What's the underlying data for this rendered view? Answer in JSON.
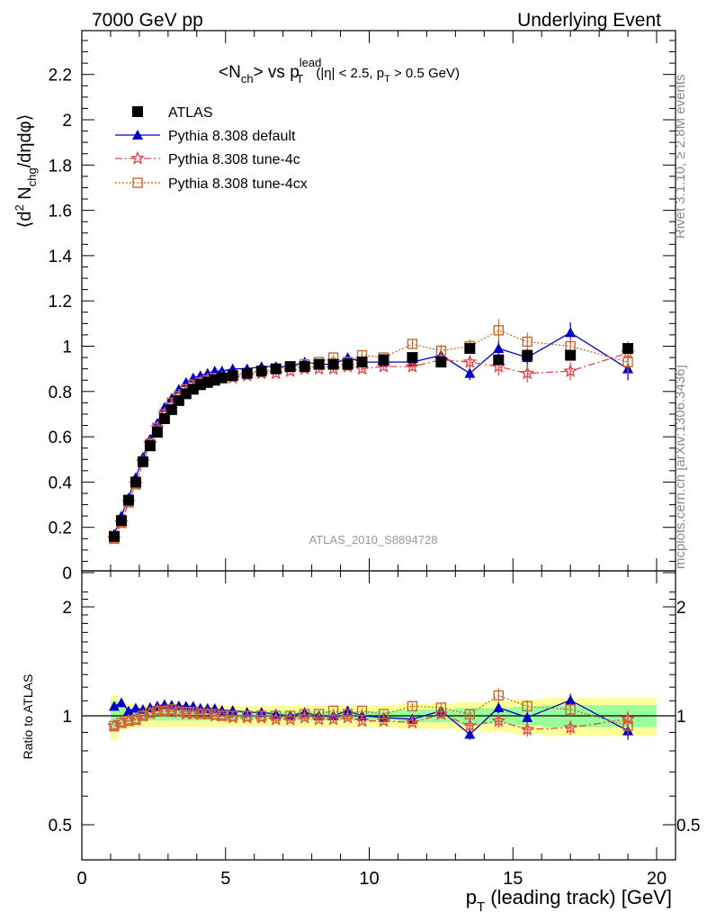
{
  "header": {
    "left": "7000 GeV pp",
    "right": "Underlying Event"
  },
  "side": {
    "rivet": "Rivet 3.1.10, ≥ 2.8M events",
    "mcplots": "mcplots.cern.ch [arXiv:1306.3436]"
  },
  "chart_data": {
    "type": "scatter",
    "title": {
      "main": "<N",
      "sub1": "ch",
      "mid": "> vs p",
      "sup": "lead",
      "sub2": "T",
      "cut": "(|η| < 2.5, p",
      "cutsub": "T",
      "cutend": " > 0.5 GeV)"
    },
    "analysis_label": "ATLAS_2010_S8894728",
    "ylabel": {
      "a": "⟨d",
      "b": "2",
      "c": " N",
      "d": "chg",
      "e": "/dηdφ⟩"
    },
    "ratio_ylabel": "Ratio to ATLAS",
    "xlabel": {
      "a": "p",
      "b": "T",
      "c": " (leading track) [GeV]"
    },
    "xlim": [
      0,
      20
    ],
    "ylim": [
      0,
      2.4
    ],
    "ratio_ylim": [
      0.35,
      2.3
    ],
    "x_ticks": [
      "0",
      "5",
      "10",
      "15",
      "20"
    ],
    "y_ticks": [
      "0",
      "0.2",
      "0.4",
      "0.6",
      "0.8",
      "1",
      "1.2",
      "1.4",
      "1.6",
      "1.8",
      "2",
      "2.2"
    ],
    "ratio_ticks": [
      "0.5",
      "1",
      "2"
    ],
    "legend": {
      "position": "top-left",
      "entries": [
        "ATLAS",
        "Pythia 8.308 default",
        "Pythia 8.308 tune-4c",
        "Pythia 8.308 tune-4cx"
      ]
    },
    "x": [
      1.125,
      1.375,
      1.625,
      1.875,
      2.125,
      2.375,
      2.625,
      2.875,
      3.125,
      3.375,
      3.625,
      3.875,
      4.125,
      4.375,
      4.625,
      4.875,
      5.25,
      5.75,
      6.25,
      6.75,
      7.25,
      7.75,
      8.25,
      8.75,
      9.25,
      9.75,
      10.5,
      11.5,
      12.5,
      13.5,
      14.5,
      15.5,
      17.0,
      19.0
    ],
    "bin_edges": [
      1.0,
      1.25,
      1.5,
      1.75,
      2.0,
      2.25,
      2.5,
      2.75,
      3.0,
      3.25,
      3.5,
      3.75,
      4.0,
      4.25,
      4.5,
      4.75,
      5.0,
      5.5,
      6.0,
      6.5,
      7.0,
      7.5,
      8.0,
      8.5,
      9.0,
      9.5,
      10.0,
      11.0,
      12.0,
      13.0,
      14.0,
      15.0,
      16.0,
      18.0,
      20.0
    ],
    "series": [
      {
        "name": "ATLAS",
        "color": "#000000",
        "marker": "square",
        "values": [
          0.16,
          0.23,
          0.32,
          0.4,
          0.49,
          0.56,
          0.62,
          0.68,
          0.72,
          0.76,
          0.79,
          0.81,
          0.83,
          0.84,
          0.85,
          0.86,
          0.87,
          0.88,
          0.89,
          0.9,
          0.91,
          0.91,
          0.92,
          0.92,
          0.92,
          0.93,
          0.94,
          0.95,
          0.93,
          0.99,
          0.94,
          0.96,
          0.96,
          0.99
        ]
      },
      {
        "name": "Pythia 8.308 default",
        "color": "#0000cc",
        "marker": "triangle",
        "values": [
          0.17,
          0.25,
          0.33,
          0.42,
          0.51,
          0.59,
          0.66,
          0.73,
          0.77,
          0.81,
          0.84,
          0.86,
          0.87,
          0.88,
          0.89,
          0.89,
          0.9,
          0.9,
          0.91,
          0.91,
          0.91,
          0.93,
          0.92,
          0.92,
          0.95,
          0.93,
          0.93,
          0.93,
          0.96,
          0.88,
          0.99,
          0.95,
          1.06,
          0.9
        ]
      },
      {
        "name": "Pythia 8.308 tune-4c",
        "color": "#e34a4a",
        "marker": "star",
        "values": [
          0.15,
          0.22,
          0.31,
          0.39,
          0.49,
          0.57,
          0.64,
          0.7,
          0.74,
          0.78,
          0.8,
          0.82,
          0.84,
          0.85,
          0.85,
          0.86,
          0.86,
          0.87,
          0.88,
          0.88,
          0.89,
          0.9,
          0.9,
          0.9,
          0.91,
          0.9,
          0.91,
          0.91,
          0.94,
          0.93,
          0.91,
          0.88,
          0.89,
          0.97
        ]
      },
      {
        "name": "Pythia 8.308 tune-4cx",
        "color": "#c8692c",
        "marker": "open-square",
        "values": [
          0.15,
          0.22,
          0.31,
          0.39,
          0.49,
          0.57,
          0.64,
          0.7,
          0.75,
          0.78,
          0.81,
          0.83,
          0.84,
          0.85,
          0.86,
          0.86,
          0.87,
          0.88,
          0.89,
          0.9,
          0.91,
          0.92,
          0.93,
          0.95,
          0.93,
          0.96,
          0.95,
          1.01,
          0.98,
          1.0,
          1.07,
          1.02,
          1.0,
          0.93
        ]
      }
    ],
    "errors": {
      "Pythia 8.308 default": [
        0,
        0,
        0,
        0,
        0,
        0,
        0,
        0,
        0,
        0,
        0,
        0,
        0,
        0,
        0,
        0,
        0.005,
        0.005,
        0.006,
        0.007,
        0.008,
        0.01,
        0.012,
        0.013,
        0.015,
        0.016,
        0.015,
        0.02,
        0.025,
        0.03,
        0.035,
        0.04,
        0.045,
        0.05
      ],
      "Pythia 8.308 tune-4c": [
        0,
        0,
        0,
        0,
        0,
        0,
        0,
        0,
        0,
        0,
        0,
        0,
        0,
        0,
        0,
        0,
        0.005,
        0.005,
        0.006,
        0.007,
        0.008,
        0.01,
        0.012,
        0.013,
        0.015,
        0.016,
        0.015,
        0.02,
        0.025,
        0.03,
        0.04,
        0.04,
        0.04,
        0.05
      ],
      "Pythia 8.308 tune-4cx": [
        0,
        0,
        0,
        0,
        0,
        0,
        0,
        0,
        0,
        0,
        0,
        0,
        0,
        0,
        0,
        0,
        0.005,
        0.005,
        0.006,
        0.007,
        0.008,
        0.01,
        0.012,
        0.013,
        0.015,
        0.016,
        0.015,
        0.02,
        0.025,
        0.03,
        0.05,
        0.04,
        0.04,
        0.05
      ]
    },
    "data_band_stat": [
      0.1,
      0.05,
      0.04,
      0.035,
      0.03,
      0.03,
      0.03,
      0.03,
      0.03,
      0.03,
      0.03,
      0.03,
      0.03,
      0.03,
      0.03,
      0.03,
      0.025,
      0.025,
      0.025,
      0.025,
      0.025,
      0.03,
      0.03,
      0.03,
      0.03,
      0.03,
      0.03,
      0.04,
      0.04,
      0.05,
      0.05,
      0.06,
      0.07,
      0.07
    ],
    "data_band_total": [
      0.14,
      0.09,
      0.08,
      0.075,
      0.07,
      0.07,
      0.07,
      0.07,
      0.07,
      0.07,
      0.07,
      0.07,
      0.07,
      0.07,
      0.07,
      0.07,
      0.065,
      0.065,
      0.065,
      0.065,
      0.065,
      0.07,
      0.07,
      0.07,
      0.07,
      0.07,
      0.07,
      0.08,
      0.08,
      0.09,
      0.1,
      0.11,
      0.12,
      0.12
    ]
  }
}
